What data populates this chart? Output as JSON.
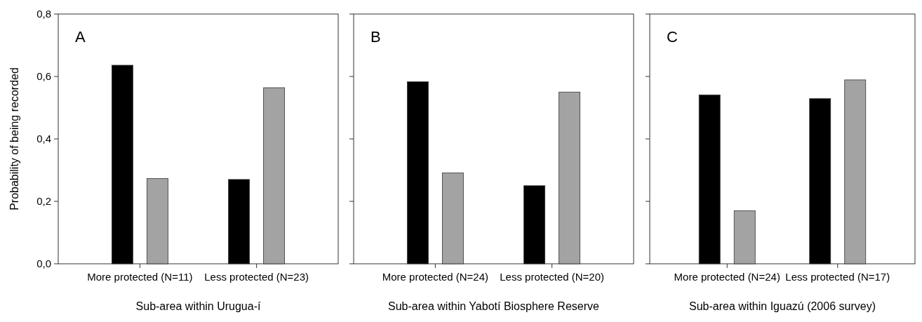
{
  "chart_data": [
    {
      "type": "bar",
      "xlabel": "Sub-area within Urugua-í",
      "ylabel": "Probability of being recorded",
      "categories": [
        "More protected (N=11)",
        "Less protected (N=23)"
      ],
      "series": [
        {
          "color": "#000000",
          "values": [
            0.636,
            0.27
          ]
        },
        {
          "color": "#a3a3a3",
          "values": [
            0.273,
            0.564
          ]
        }
      ],
      "ylim": [
        0,
        0.8
      ],
      "yticks": [
        {
          "value": 0,
          "label": "0,0"
        },
        {
          "value": 0.2,
          "label": "0,2"
        },
        {
          "value": 0.4,
          "label": "0,4"
        },
        {
          "value": 0.6,
          "label": "0,6"
        },
        {
          "value": 0.8,
          "label": "0,8"
        }
      ],
      "annotations": [
        "A"
      ]
    },
    {
      "type": "bar",
      "xlabel": "Sub-area within Yabotí Biosphere Reserve",
      "categories": [
        "More protected (N=24)",
        "Less protected (N=20)"
      ],
      "series": [
        {
          "color": "#000000",
          "values": [
            0.583,
            0.25
          ]
        },
        {
          "color": "#a3a3a3",
          "values": [
            0.291,
            0.55
          ]
        }
      ],
      "ylim": [
        0,
        0.8
      ],
      "yticks": [
        {
          "value": 0,
          "label": null
        },
        {
          "value": 0.2,
          "label": null
        },
        {
          "value": 0.4,
          "label": null
        },
        {
          "value": 0.6,
          "label": null
        },
        {
          "value": 0.8,
          "label": null
        }
      ],
      "tick_labels": "x",
      "annotations": [
        "B"
      ]
    },
    {
      "type": "bar",
      "xlabel": "Sub-area within Iguazú (2006 survey)",
      "categories": [
        "More protected (N=24)",
        "Less protected (N=17)"
      ],
      "series": [
        {
          "color": "#000000",
          "values": [
            0.541,
            0.529
          ]
        },
        {
          "color": "#a3a3a3",
          "values": [
            0.17,
            0.589
          ]
        }
      ],
      "ylim": [
        0,
        0.8
      ],
      "yticks": [
        {
          "value": 0,
          "label": null
        },
        {
          "value": 0.2,
          "label": null
        },
        {
          "value": 0.4,
          "label": null
        },
        {
          "value": 0.6,
          "label": null
        },
        {
          "value": 0.8,
          "label": null
        }
      ],
      "tick_labels": "x",
      "annotations": [
        "C"
      ]
    }
  ]
}
